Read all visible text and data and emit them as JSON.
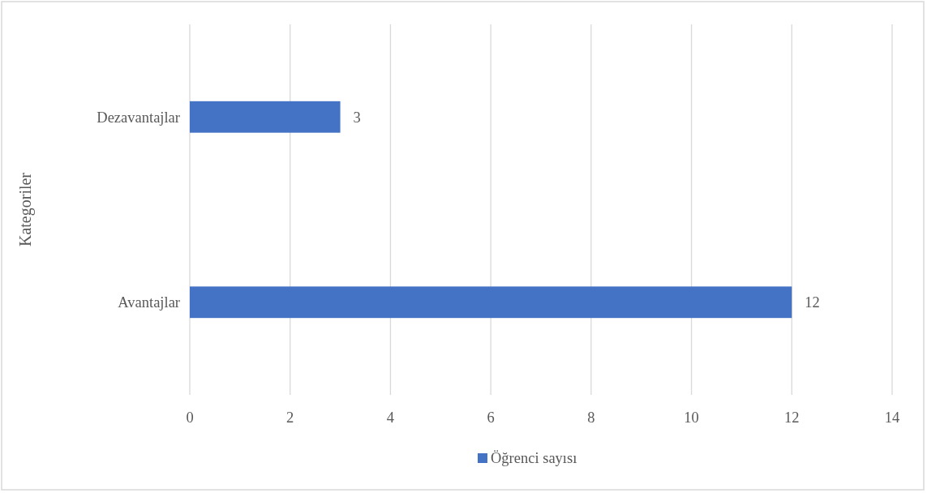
{
  "chart_data": {
    "type": "bar",
    "orientation": "horizontal",
    "ylabel": "Kategoriler",
    "categories": [
      "Dezavantajlar",
      "Avantajlar"
    ],
    "series": [
      {
        "name": "Öğrenci sayısı",
        "color": "#4472c4",
        "values": [
          3,
          12
        ]
      }
    ],
    "xlim": [
      0,
      14
    ],
    "xticks": [
      0,
      2,
      4,
      6,
      8,
      10,
      12,
      14
    ],
    "grid": "x",
    "legend": "bottom",
    "data_labels": true
  }
}
